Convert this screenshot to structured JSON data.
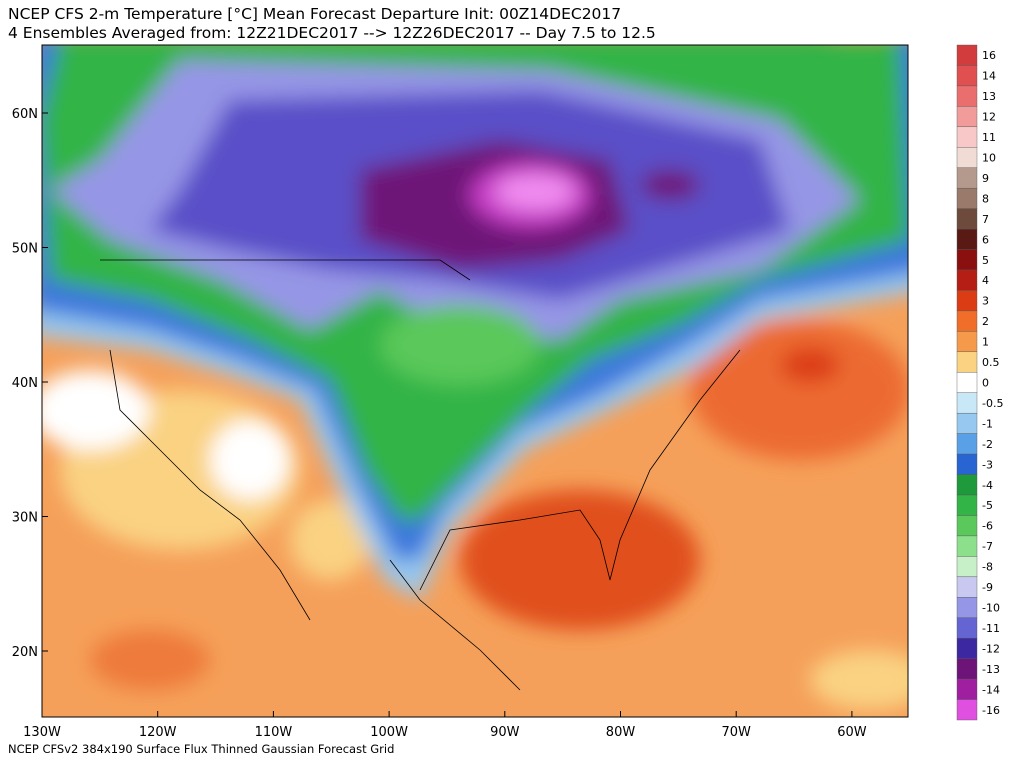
{
  "title": {
    "line1": "NCEP CFS 2-m Temperature [°C] Mean Forecast Departure Init: 00Z14DEC2017",
    "line2": "4 Ensembles Averaged from: 12Z21DEC2017 --> 12Z26DEC2017 -- Day 7.5 to 12.5"
  },
  "axes": {
    "lon_labels": [
      "130W",
      "120W",
      "110W",
      "100W",
      "90W",
      "80W",
      "70W",
      "60W"
    ],
    "lat_labels": [
      "60N",
      "50N",
      "40N",
      "30N",
      "20N"
    ]
  },
  "colorbar": {
    "labels": [
      "16",
      "14",
      "13",
      "12",
      "11",
      "10",
      "9",
      "8",
      "7",
      "6",
      "5",
      "4",
      "3",
      "2",
      "1",
      "0.5",
      "0",
      "-0.5",
      "-1",
      "-2",
      "-3",
      "-4",
      "-5",
      "-6",
      "-7",
      "-8",
      "-9",
      "-10",
      "-11",
      "-12",
      "-13",
      "-14",
      "-16"
    ],
    "colors": [
      "#d23c3c",
      "#e05050",
      "#ea6e6e",
      "#f29b9b",
      "#f8c8c8",
      "#f0dcd4",
      "#b49a8c",
      "#9a7a6a",
      "#6e4a3c",
      "#5a1a14",
      "#8a1010",
      "#b41e14",
      "#dc3c14",
      "#f06e2a",
      "#f59a4a",
      "#fad282",
      "#ffffff",
      "#c8e8f8",
      "#96c8f0",
      "#5aa0e6",
      "#2864d2",
      "#1e9a3c",
      "#32b446",
      "#5ac85a",
      "#8ce08c",
      "#c8f0c8",
      "#c8c8f0",
      "#9696e6",
      "#6464d2",
      "#3c28a0",
      "#6e1478",
      "#a01ea0",
      "#e050e0"
    ]
  },
  "footer": "NCEP CFSv2 384x190 Surface Flux Thinned Gaussian Forecast Grid"
}
